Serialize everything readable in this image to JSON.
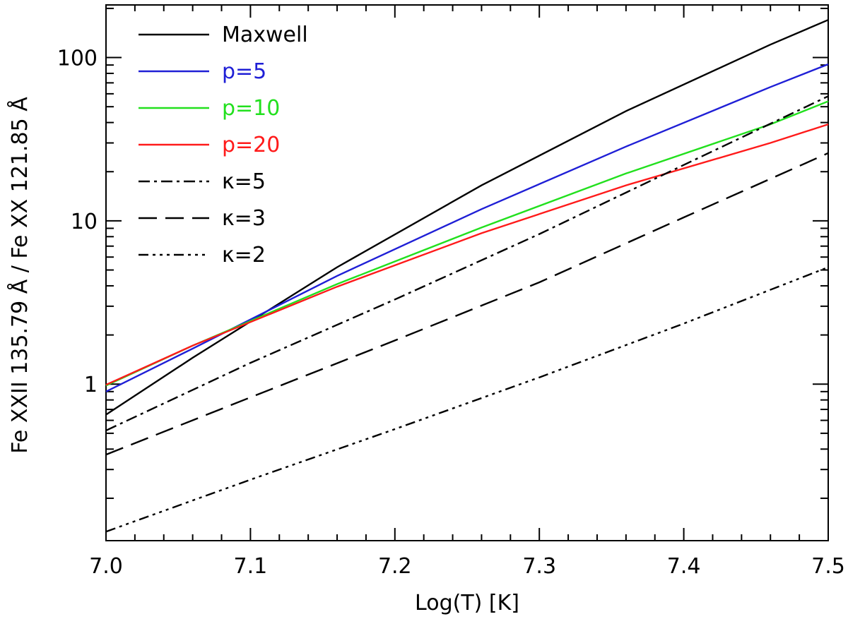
{
  "chart_data": {
    "type": "line",
    "title": "",
    "xlabel": "Log(T) [K]",
    "ylabel": "Fe XXII 135.79 Å / Fe XX 121.85 Å",
    "xlim": [
      7.0,
      7.5
    ],
    "ylim": [
      0.11,
      210
    ],
    "yscale": "log",
    "grid": false,
    "legend_position": "top-left",
    "x_ticks": [
      {
        "value": 7.0,
        "label": "7.0"
      },
      {
        "value": 7.1,
        "label": "7.1"
      },
      {
        "value": 7.2,
        "label": "7.2"
      },
      {
        "value": 7.3,
        "label": "7.3"
      },
      {
        "value": 7.4,
        "label": "7.4"
      },
      {
        "value": 7.5,
        "label": "7.5"
      }
    ],
    "y_ticks": [
      {
        "value": 1,
        "label": "1"
      },
      {
        "value": 10,
        "label": "10"
      },
      {
        "value": 100,
        "label": "100"
      }
    ],
    "series": [
      {
        "name": "Maxwell",
        "color": "#000000",
        "dash": "solid",
        "x": [
          7.0,
          7.06,
          7.16,
          7.26,
          7.36,
          7.46,
          7.5
        ],
        "y": [
          0.65,
          1.45,
          5.2,
          16.5,
          47,
          120,
          170
        ]
      },
      {
        "name": "p=5",
        "color": "#1f1fd6",
        "dash": "solid",
        "x": [
          7.0,
          7.06,
          7.16,
          7.26,
          7.36,
          7.46,
          7.5
        ],
        "y": [
          0.9,
          1.65,
          4.6,
          11.8,
          28.5,
          66,
          91
        ]
      },
      {
        "name": "p=10",
        "color": "#22e01e",
        "dash": "solid",
        "x": [
          7.0,
          7.06,
          7.16,
          7.26,
          7.36,
          7.46,
          7.5
        ],
        "y": [
          0.98,
          1.72,
          4.1,
          9.1,
          19.5,
          39,
          54
        ]
      },
      {
        "name": "p=20",
        "color": "#ff1a1a",
        "dash": "solid",
        "x": [
          7.0,
          7.06,
          7.16,
          7.26,
          7.36,
          7.46,
          7.5
        ],
        "y": [
          0.99,
          1.72,
          3.95,
          8.4,
          16.5,
          30,
          39
        ]
      },
      {
        "name": "κ=5",
        "color": "#000000",
        "dash": "dashdot",
        "x": [
          7.0,
          7.1,
          7.2,
          7.3,
          7.4,
          7.5
        ],
        "y": [
          0.52,
          1.35,
          3.3,
          8.3,
          22,
          58
        ]
      },
      {
        "name": "κ=3",
        "color": "#000000",
        "dash": "dashed",
        "x": [
          7.0,
          7.1,
          7.2,
          7.3,
          7.4,
          7.5
        ],
        "y": [
          0.37,
          0.83,
          1.85,
          4.2,
          10.5,
          26
        ]
      },
      {
        "name": "κ=2",
        "color": "#000000",
        "dash": "dashdotdot",
        "x": [
          7.0,
          7.1,
          7.2,
          7.3,
          7.4,
          7.5
        ],
        "y": [
          0.125,
          0.26,
          0.53,
          1.1,
          2.35,
          5.2
        ]
      }
    ]
  }
}
